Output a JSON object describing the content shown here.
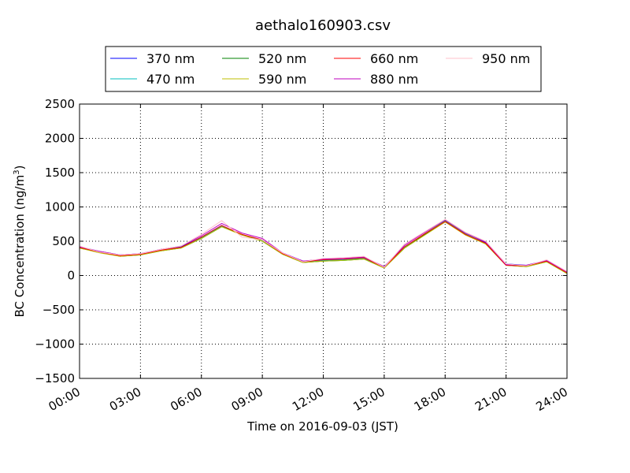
{
  "chart_data": {
    "type": "line",
    "title": "aethalo160903.csv",
    "xlabel": "Time on 2016-09-03 (JST)",
    "ylabel_main": "BC Concentration (ng/m",
    "ylabel_sup": "3",
    "ylabel_tail": ")",
    "xlim": [
      "00:00",
      "24:00"
    ],
    "ylim": [
      -1500,
      2500
    ],
    "grid": true,
    "legend_position": "top-center",
    "x_ticks": [
      {
        "t": 0,
        "label": "00:00"
      },
      {
        "t": 3,
        "label": "03:00"
      },
      {
        "t": 6,
        "label": "06:00"
      },
      {
        "t": 9,
        "label": "09:00"
      },
      {
        "t": 12,
        "label": "12:00"
      },
      {
        "t": 15,
        "label": "15:00"
      },
      {
        "t": 18,
        "label": "18:00"
      },
      {
        "t": 21,
        "label": "21:00"
      },
      {
        "t": 24,
        "label": "24:00"
      }
    ],
    "y_ticks": [
      {
        "v": -1500,
        "label": "−1500"
      },
      {
        "v": -1000,
        "label": "−1000"
      },
      {
        "v": -500,
        "label": "−500"
      },
      {
        "v": 0,
        "label": "0"
      },
      {
        "v": 500,
        "label": "500"
      },
      {
        "v": 1000,
        "label": "1000"
      },
      {
        "v": 1500,
        "label": "1500"
      },
      {
        "v": 2000,
        "label": "2000"
      },
      {
        "v": 2500,
        "label": "2500"
      }
    ],
    "x": [
      "00:00",
      "01:00",
      "02:00",
      "03:00",
      "04:00",
      "05:00",
      "06:00",
      "07:00",
      "08:00",
      "09:00",
      "10:00",
      "11:00",
      "12:00",
      "13:00",
      "14:00",
      "15:00",
      "16:00",
      "17:00",
      "18:00",
      "19:00",
      "20:00",
      "21:00",
      "22:00",
      "23:00",
      "24:00"
    ],
    "series": [
      {
        "name": "370 nm",
        "color": "#0000ff",
        "values": [
          420,
          350,
          300,
          320,
          380,
          420,
          560,
          730,
          590,
          520,
          330,
          210,
          230,
          240,
          260,
          130,
          420,
          600,
          780,
          600,
          480,
          170,
          150,
          220,
          50
        ]
      },
      {
        "name": "470 nm",
        "color": "#00bfbf",
        "values": [
          410,
          340,
          290,
          310,
          370,
          410,
          550,
          720,
          600,
          510,
          320,
          200,
          220,
          230,
          250,
          120,
          410,
          610,
          800,
          610,
          470,
          160,
          140,
          210,
          40
        ]
      },
      {
        "name": "520 nm",
        "color": "#008000",
        "values": [
          400,
          340,
          280,
          300,
          360,
          400,
          540,
          710,
          600,
          500,
          310,
          190,
          210,
          220,
          240,
          110,
          400,
          600,
          790,
          600,
          460,
          150,
          130,
          200,
          30
        ]
      },
      {
        "name": "590 nm",
        "color": "#bfbf00",
        "values": [
          400,
          330,
          280,
          300,
          360,
          400,
          540,
          710,
          590,
          500,
          310,
          190,
          210,
          220,
          240,
          110,
          400,
          590,
          780,
          590,
          460,
          150,
          130,
          200,
          30
        ]
      },
      {
        "name": "660 nm",
        "color": "#ff0000",
        "values": [
          410,
          340,
          290,
          310,
          370,
          410,
          560,
          730,
          600,
          520,
          320,
          200,
          230,
          240,
          260,
          120,
          420,
          610,
          790,
          600,
          470,
          150,
          140,
          210,
          40
        ]
      },
      {
        "name": "880 nm",
        "color": "#bf00bf",
        "values": [
          420,
          350,
          300,
          320,
          380,
          430,
          580,
          760,
          620,
          540,
          330,
          210,
          240,
          250,
          270,
          130,
          440,
          630,
          810,
          620,
          490,
          160,
          150,
          220,
          50
        ]
      },
      {
        "name": "950 nm",
        "color": "#ffc0cb",
        "values": [
          430,
          340,
          300,
          320,
          380,
          430,
          600,
          800,
          560,
          520,
          330,
          200,
          250,
          260,
          280,
          120,
          460,
          640,
          820,
          630,
          500,
          170,
          140,
          230,
          60
        ]
      }
    ]
  }
}
